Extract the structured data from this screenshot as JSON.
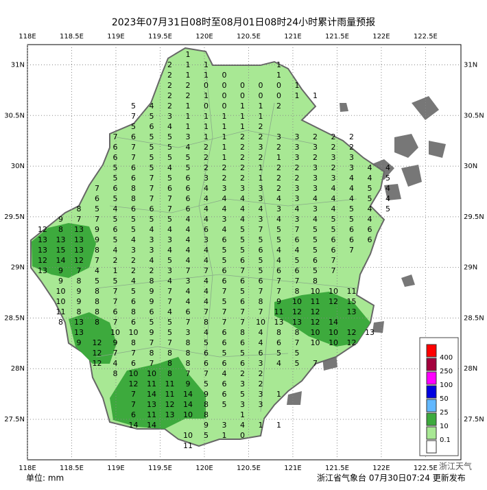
{
  "title": "2023年07月31日08时至08月01日08时24小时累计雨量预报",
  "unit": "单位: mm",
  "publisher": "浙江省气象台 07月30日07:24 更新发布",
  "watermark": "浙江天气",
  "map": {
    "xlim": [
      118,
      122.9
    ],
    "ylim": [
      27.1,
      31.2
    ],
    "xticks": [
      {
        "value": 118,
        "label": "118E"
      },
      {
        "value": 118.5,
        "label": "118.5E"
      },
      {
        "value": 119,
        "label": "119E"
      },
      {
        "value": 119.5,
        "label": "119.5E"
      },
      {
        "value": 120,
        "label": "120E"
      },
      {
        "value": 120.5,
        "label": "120.5E"
      },
      {
        "value": 121,
        "label": "121E"
      },
      {
        "value": 121.5,
        "label": "121.5E"
      },
      {
        "value": 122,
        "label": "122E"
      },
      {
        "value": 122.5,
        "label": "122.5E"
      }
    ],
    "yticks": [
      {
        "value": 31,
        "label": "31N"
      },
      {
        "value": 30.5,
        "label": "30.5N"
      },
      {
        "value": 30,
        "label": "30N"
      },
      {
        "value": 29.5,
        "label": "29.5N"
      },
      {
        "value": 29,
        "label": "29N"
      },
      {
        "value": 28.5,
        "label": "28.5N"
      },
      {
        "value": 28,
        "label": "28N"
      },
      {
        "value": 27.5,
        "label": "27.5N"
      }
    ]
  },
  "legend": {
    "levels": [
      400,
      250,
      100,
      50,
      25,
      10,
      0.1
    ],
    "colors": [
      "#ff0000",
      "#a3003c",
      "#ff00ff",
      "#0000e0",
      "#62b8ff",
      "#3daa3d",
      "#a8e894",
      "#ffffff"
    ]
  },
  "grid": {
    "rows": [
      [
        null,
        null,
        null,
        null,
        null,
        null,
        null,
        null,
        1
      ],
      [
        null,
        null,
        null,
        null,
        null,
        null,
        null,
        2,
        1,
        1,
        null,
        null,
        null,
        1
      ],
      [
        null,
        null,
        null,
        null,
        null,
        null,
        null,
        2,
        1,
        1,
        0,
        null,
        null,
        1
      ],
      [
        null,
        null,
        null,
        null,
        null,
        null,
        null,
        2,
        2,
        0,
        0,
        0,
        0,
        0,
        1
      ],
      [
        null,
        null,
        null,
        null,
        null,
        null,
        null,
        2,
        2,
        1,
        0,
        0,
        0,
        0,
        1,
        1
      ],
      [
        null,
        null,
        null,
        null,
        null,
        5,
        4,
        2,
        1,
        0,
        0,
        1,
        1,
        2
      ],
      [
        null,
        null,
        null,
        null,
        null,
        7,
        5,
        3,
        1,
        1,
        1,
        1,
        1
      ],
      [
        null,
        null,
        null,
        null,
        null,
        5,
        6,
        4,
        1,
        1,
        1,
        1,
        2
      ],
      [
        null,
        null,
        null,
        null,
        7,
        6,
        5,
        5,
        3,
        1,
        1,
        2,
        2,
        3,
        3,
        2,
        2,
        2
      ],
      [
        null,
        null,
        null,
        null,
        6,
        7,
        5,
        5,
        4,
        2,
        1,
        2,
        3,
        2,
        3,
        3,
        2,
        2
      ],
      [
        null,
        null,
        null,
        null,
        6,
        7,
        5,
        5,
        5,
        2,
        1,
        2,
        2,
        1,
        3,
        2,
        3,
        3
      ],
      [
        null,
        null,
        null,
        null,
        5,
        6,
        5,
        4,
        5,
        2,
        2,
        2,
        1,
        2,
        2,
        3,
        2,
        3,
        4,
        4
      ],
      [
        null,
        null,
        null,
        null,
        5,
        6,
        7,
        5,
        6,
        3,
        2,
        2,
        1,
        2,
        2,
        3,
        3,
        4,
        4,
        5
      ],
      [
        null,
        null,
        null,
        7,
        6,
        8,
        7,
        6,
        6,
        4,
        3,
        3,
        3,
        2,
        3,
        3,
        4,
        4,
        5,
        4
      ],
      [
        null,
        null,
        null,
        6,
        5,
        8,
        7,
        7,
        6,
        4,
        4,
        4,
        3,
        4,
        3,
        4,
        4,
        4,
        5,
        4
      ],
      [
        null,
        null,
        8,
        5,
        4,
        6,
        6,
        7,
        6,
        4,
        4,
        4,
        4,
        3,
        4,
        3,
        4,
        5,
        4,
        5
      ],
      [
        null,
        9,
        7,
        7,
        5,
        5,
        5,
        5,
        4,
        4,
        3,
        4,
        3,
        4,
        3,
        4,
        5,
        5,
        4
      ],
      [
        12,
        8,
        13,
        9,
        6,
        5,
        4,
        4,
        4,
        6,
        4,
        5,
        7,
        5,
        7,
        5,
        5,
        6,
        6
      ],
      [
        13,
        13,
        13,
        9,
        5,
        4,
        3,
        3,
        4,
        3,
        6,
        5,
        5,
        5,
        6,
        5,
        6,
        6,
        6
      ],
      [
        13,
        15,
        13,
        8,
        4,
        3,
        3,
        4,
        4,
        4,
        5,
        5,
        6,
        4,
        4,
        5,
        6,
        7
      ],
      [
        12,
        14,
        12,
        7,
        2,
        2,
        4,
        5,
        4,
        4,
        5,
        6,
        5,
        4,
        5,
        6,
        7
      ],
      [
        13,
        9,
        7,
        4,
        1,
        2,
        2,
        3,
        7,
        7,
        6,
        7,
        5,
        6,
        6,
        5,
        7
      ],
      [
        null,
        9,
        8,
        5,
        5,
        4,
        8,
        4,
        3,
        4,
        6,
        6,
        6,
        7,
        7,
        8
      ],
      [
        null,
        10,
        9,
        8,
        7,
        5,
        9,
        7,
        4,
        4,
        7,
        5,
        7,
        7,
        8,
        10,
        10,
        11
      ],
      [
        null,
        10,
        9,
        8,
        7,
        6,
        9,
        7,
        4,
        4,
        5,
        6,
        8,
        9,
        10,
        11,
        12,
        15
      ],
      [
        null,
        11,
        8,
        8,
        6,
        8,
        6,
        4,
        6,
        7,
        7,
        7,
        7,
        11,
        12,
        12,
        null,
        13
      ],
      [
        null,
        8,
        13,
        8,
        7,
        6,
        5,
        5,
        7,
        8,
        7,
        7,
        10,
        13,
        13,
        12,
        14
      ],
      [
        null,
        null,
        13,
        null,
        10,
        10,
        9,
        5,
        3,
        4,
        6,
        8,
        4,
        8,
        8,
        10,
        10,
        12,
        13
      ],
      [
        null,
        null,
        9,
        12,
        9,
        8,
        7,
        7,
        8,
        5,
        6,
        6,
        4,
        6,
        7,
        10,
        10,
        12
      ],
      [
        null,
        null,
        null,
        12,
        7,
        7,
        8,
        8,
        8,
        6,
        5,
        5,
        6,
        5,
        5
      ],
      [
        null,
        null,
        null,
        12,
        4,
        6,
        7,
        8,
        8,
        6,
        6,
        6,
        3,
        4,
        5,
        7
      ],
      [
        null,
        null,
        null,
        null,
        8,
        10,
        10,
        8,
        7,
        7,
        4,
        2,
        2
      ],
      [
        null,
        null,
        null,
        null,
        null,
        12,
        11,
        11,
        9,
        5,
        6,
        3,
        2
      ],
      [
        null,
        null,
        null,
        null,
        null,
        7,
        14,
        11,
        14,
        9,
        6,
        5,
        3,
        1
      ],
      [
        null,
        null,
        null,
        null,
        null,
        7,
        13,
        12,
        14,
        8,
        5,
        3,
        3
      ],
      [
        null,
        null,
        null,
        null,
        null,
        6,
        11,
        13,
        10,
        8,
        null,
        1
      ],
      [
        null,
        null,
        null,
        null,
        null,
        14,
        14,
        null,
        null,
        9,
        3,
        4,
        1,
        1
      ],
      [
        null,
        null,
        null,
        null,
        null,
        null,
        null,
        null,
        10,
        5,
        1,
        0
      ],
      [
        null,
        null,
        null,
        null,
        null,
        null,
        null,
        null,
        11
      ]
    ]
  }
}
